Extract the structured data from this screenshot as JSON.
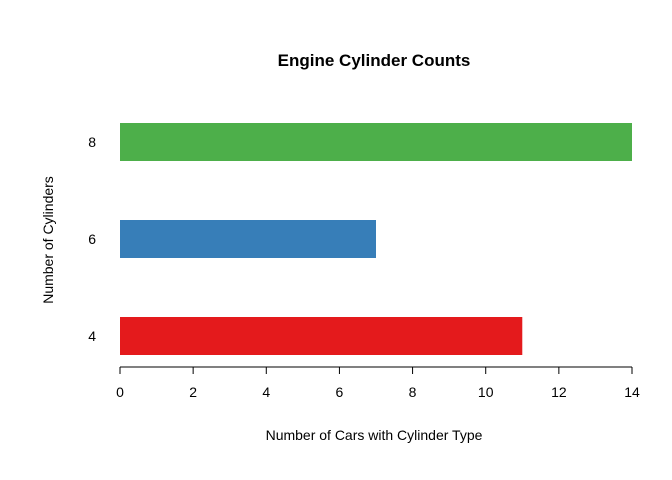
{
  "chart_data": {
    "type": "bar",
    "orientation": "horizontal",
    "title": "Engine Cylinder Counts",
    "xlabel": "Number of Cars with Cylinder Type",
    "ylabel": "Number of Cylinders",
    "categories": [
      "4",
      "6",
      "8"
    ],
    "values": [
      11,
      7,
      14
    ],
    "colors": [
      "#e41a1c",
      "#377eb8",
      "#4daf4a"
    ],
    "xlim": [
      0,
      14
    ],
    "xticks": [
      0,
      2,
      4,
      6,
      8,
      10,
      12,
      14
    ],
    "grid": false,
    "legend": "none"
  }
}
